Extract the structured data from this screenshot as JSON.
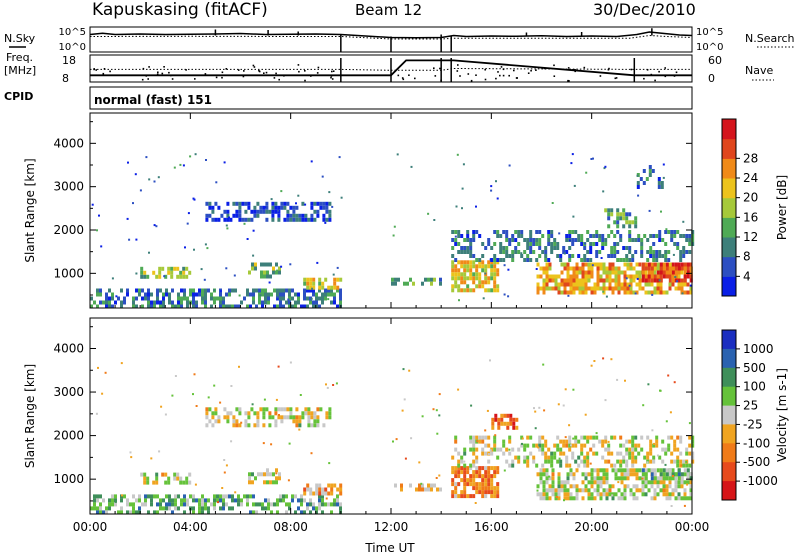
{
  "header": {
    "station": "Kapuskasing (fitACF)",
    "beam": "Beam 12",
    "date": "30/Dec/2010"
  },
  "strip_labels": {
    "nsky": "N.Sky",
    "nsearch": "N.Search",
    "freq": "Freq.",
    "mhz": "[MHz]",
    "nave": "Nave",
    "cpid": "CPID",
    "cpid_value": "normal (fast) 151"
  },
  "chart_data": [
    {
      "type": "line",
      "panel": "noise",
      "y_ticks": [
        "10^5",
        "10^0"
      ],
      "y_ticks_right": [
        "10^5",
        "10^0"
      ],
      "series": [
        {
          "name": "N.Sky",
          "x": [
            0.0,
            0.5,
            1,
            2,
            3,
            4,
            5,
            6,
            7,
            8,
            9,
            10,
            12,
            13,
            14,
            14.5,
            15,
            16,
            17,
            18,
            19,
            20,
            21,
            21.8,
            22.3,
            22.8,
            23.5,
            24
          ],
          "y": [
            0.7,
            0.75,
            0.7,
            0.72,
            0.7,
            0.71,
            0.72,
            0.74,
            0.7,
            0.71,
            0.72,
            0.7,
            0.58,
            0.57,
            0.58,
            0.66,
            0.62,
            0.64,
            0.63,
            0.65,
            0.62,
            0.64,
            0.62,
            0.7,
            0.8,
            0.75,
            0.68,
            0.66
          ]
        },
        {
          "name": "N.Search",
          "x": [
            0.0,
            4,
            8,
            10,
            12,
            14,
            14.5,
            18,
            21.5,
            22.3,
            23,
            24
          ],
          "y": [
            0.62,
            0.63,
            0.62,
            0.62,
            0.52,
            0.52,
            0.55,
            0.55,
            0.55,
            0.66,
            0.62,
            0.58
          ]
        }
      ],
      "gaps": [
        [
          10.0,
          12.0
        ],
        [
          14.0,
          14.4
        ]
      ]
    },
    {
      "type": "line",
      "panel": "freq-nave",
      "y_ticks_left": [
        "18",
        "8"
      ],
      "y_ticks_right": [
        "60",
        "0"
      ],
      "series": [
        {
          "name": "Freq.",
          "x": [
            0,
            10,
            12,
            12.6,
            14,
            14.5,
            21.7,
            24
          ],
          "y": [
            10.5,
            10.5,
            10.5,
            16,
            16,
            16,
            10.5,
            10.5
          ]
        },
        {
          "name": "Nave",
          "x": [
            0,
            10,
            12,
            14,
            14.5,
            21.7,
            24
          ],
          "y": [
            28,
            28,
            26,
            26,
            30,
            28,
            28
          ]
        }
      ]
    },
    {
      "type": "heatmap",
      "panel": "power",
      "ylabel": "Slant Range [km]",
      "y_ticks": [
        "1000",
        "2000",
        "3000",
        "4000"
      ],
      "ylim": [
        200,
        4700
      ],
      "colorbar": {
        "label": "Power [dB]",
        "ticks": [
          "4",
          "8",
          "12",
          "16",
          "20",
          "24",
          "28"
        ],
        "colors": [
          "#0a1fe6",
          "#2c4fc2",
          "#3d7f7a",
          "#4faa55",
          "#a6c93a",
          "#ecc31c",
          "#f08a18",
          "#e0461d",
          "#d4141c"
        ]
      },
      "echo_regions": [
        {
          "t": [
            0.0,
            10.0
          ],
          "r": [
            250,
            650
          ],
          "level": 0.25,
          "density": 0.55
        },
        {
          "t": [
            2.0,
            4.0
          ],
          "r": [
            900,
            1150
          ],
          "level": 0.45,
          "density": 0.6
        },
        {
          "t": [
            4.6,
            9.6
          ],
          "r": [
            2250,
            2650
          ],
          "level": 0.15,
          "density": 0.55
        },
        {
          "t": [
            6.3,
            7.6
          ],
          "r": [
            950,
            1250
          ],
          "level": 0.4,
          "density": 0.6
        },
        {
          "t": [
            8.5,
            10.0
          ],
          "r": [
            700,
            900
          ],
          "level": 0.55,
          "density": 0.7
        },
        {
          "t": [
            12.0,
            14.0
          ],
          "r": [
            800,
            900
          ],
          "level": 0.35,
          "density": 0.6
        },
        {
          "t": [
            14.4,
            16.2
          ],
          "r": [
            650,
            1300
          ],
          "level": 0.6,
          "density": 0.75
        },
        {
          "t": [
            14.4,
            24.0
          ],
          "r": [
            1300,
            2000
          ],
          "level": 0.25,
          "density": 0.45
        },
        {
          "t": [
            17.8,
            24.0
          ],
          "r": [
            600,
            1250
          ],
          "level": 0.65,
          "density": 0.7
        },
        {
          "t": [
            22.0,
            24.0
          ],
          "r": [
            850,
            1250
          ],
          "level": 0.85,
          "density": 0.8
        },
        {
          "t": [
            20.5,
            21.8
          ],
          "r": [
            2100,
            2500
          ],
          "level": 0.35,
          "density": 0.5
        },
        {
          "t": [
            21.8,
            22.8
          ],
          "r": [
            3000,
            3500
          ],
          "level": 0.2,
          "density": 0.3
        }
      ]
    },
    {
      "type": "heatmap",
      "panel": "velocity",
      "ylabel": "Slant Range [km]",
      "xlabel": "Time UT",
      "x_ticks": [
        "00:00",
        "04:00",
        "08:00",
        "12:00",
        "16:00",
        "20:00",
        "00:00"
      ],
      "y_ticks": [
        "1000",
        "2000",
        "3000",
        "4000"
      ],
      "ylim": [
        200,
        4700
      ],
      "colorbar": {
        "label": "Velocity [m s-1]",
        "ticks": [
          "1000",
          "500",
          "100",
          "25",
          "-25",
          "-100",
          "-500",
          "-1000"
        ],
        "colors": [
          "#1a2ec0",
          "#2a62b0",
          "#3f8f5a",
          "#65c23a",
          "#c8c8c8",
          "#f0a420",
          "#f07b18",
          "#e74a1c",
          "#d61518"
        ]
      },
      "echo_regions": [
        {
          "t": [
            0.0,
            10.0
          ],
          "r": [
            250,
            650
          ],
          "level": 0.35,
          "density": 0.5
        },
        {
          "t": [
            2.0,
            4.0
          ],
          "r": [
            900,
            1150
          ],
          "level": 0.5,
          "density": 0.5
        },
        {
          "t": [
            4.6,
            9.6
          ],
          "r": [
            2250,
            2650
          ],
          "level": 0.5,
          "density": 0.5
        },
        {
          "t": [
            6.3,
            7.6
          ],
          "r": [
            950,
            1250
          ],
          "level": 0.5,
          "density": 0.5
        },
        {
          "t": [
            8.5,
            10.0
          ],
          "r": [
            700,
            900
          ],
          "level": 0.65,
          "density": 0.7
        },
        {
          "t": [
            12.0,
            14.0
          ],
          "r": [
            800,
            900
          ],
          "level": 0.6,
          "density": 0.5
        },
        {
          "t": [
            14.4,
            16.2
          ],
          "r": [
            650,
            1300
          ],
          "level": 0.7,
          "density": 0.7
        },
        {
          "t": [
            16.0,
            17.0
          ],
          "r": [
            2200,
            2500
          ],
          "level": 0.75,
          "density": 0.5
        },
        {
          "t": [
            14.4,
            24.0
          ],
          "r": [
            1300,
            2000
          ],
          "level": 0.5,
          "density": 0.4
        },
        {
          "t": [
            17.8,
            24.0
          ],
          "r": [
            600,
            1250
          ],
          "level": 0.5,
          "density": 0.6
        },
        {
          "t": [
            22.0,
            24.0
          ],
          "r": [
            1000,
            1250
          ],
          "level": 0.35,
          "density": 0.6
        }
      ]
    }
  ]
}
